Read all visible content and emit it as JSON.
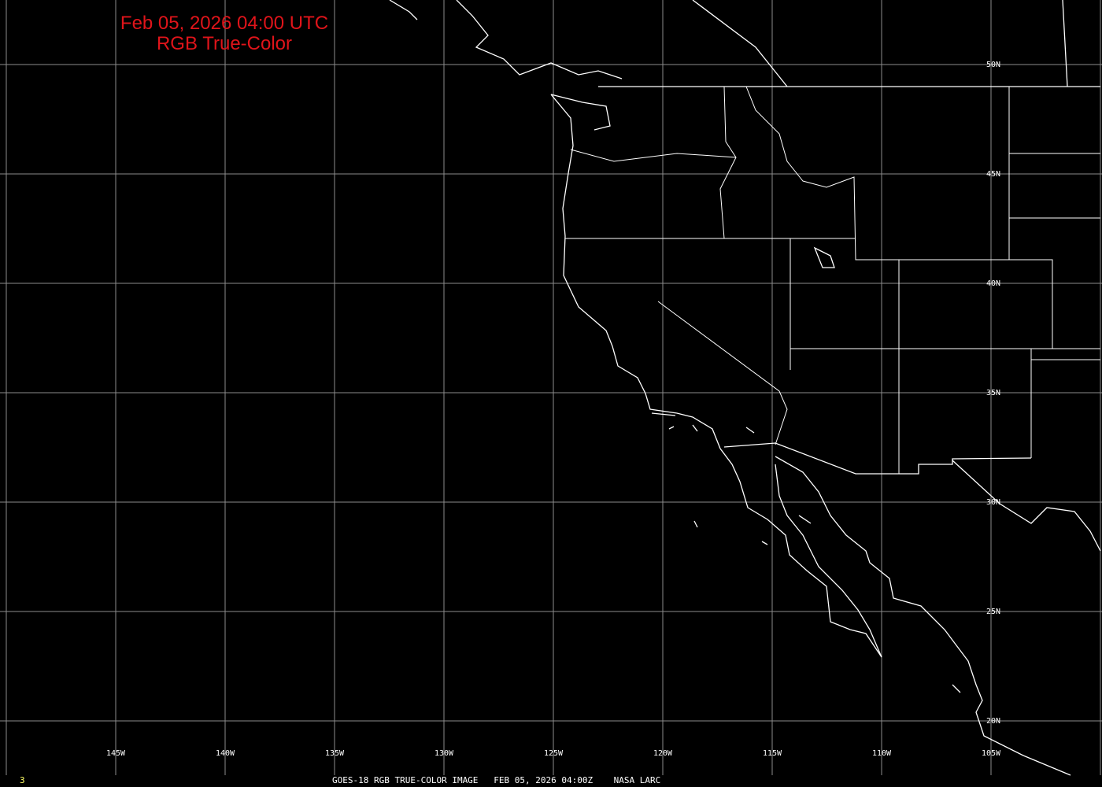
{
  "title": {
    "line1": "Feb 05, 2026 04:00 UTC",
    "line2": "RGB True-Color"
  },
  "footer": {
    "frame": "3",
    "caption": "GOES-18 RGB TRUE-COLOR IMAGE   FEB 05, 2026 04:00Z    NASA LARC"
  },
  "grid": {
    "longitudes": [
      -145,
      -140,
      -135,
      -130,
      -125,
      -120,
      -115,
      -110,
      -105
    ],
    "longitude_labels": [
      "145W",
      "140W",
      "135W",
      "130W",
      "125W",
      "120W",
      "115W",
      "110W",
      "105W"
    ],
    "latitudes": [
      50,
      45,
      40,
      35,
      30,
      25,
      20
    ],
    "latitude_labels": [
      "50N",
      "45N",
      "40N",
      "35N",
      "30N",
      "25N",
      "20N"
    ]
  },
  "colors": {
    "background": "#000000",
    "coastline": "#ffffff",
    "grid": "#8c8c8c",
    "title": "#e0141a",
    "frame_number": "#ffff66"
  }
}
